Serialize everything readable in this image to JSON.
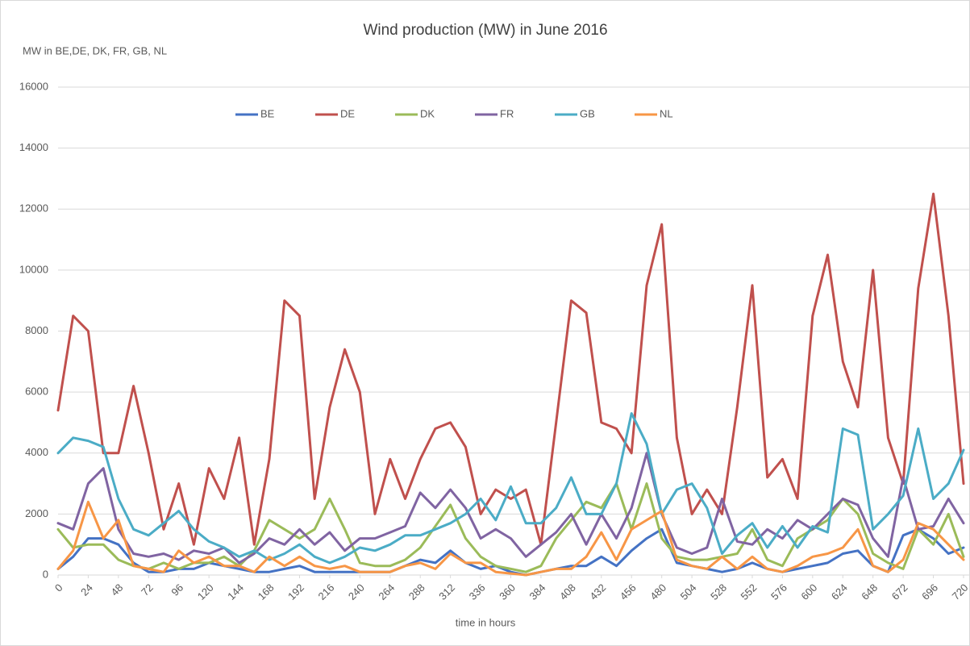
{
  "chart_data": {
    "type": "line",
    "title": "Wind production (MW) in June 2016",
    "y_label": "MW in BE,DE, DK, FR, GB, NL",
    "x_label": "time in hours",
    "x": [
      0,
      12,
      24,
      36,
      48,
      60,
      72,
      84,
      96,
      108,
      120,
      132,
      144,
      156,
      168,
      180,
      192,
      204,
      216,
      228,
      240,
      252,
      264,
      276,
      288,
      300,
      312,
      324,
      336,
      348,
      360,
      372,
      384,
      396,
      408,
      420,
      432,
      444,
      456,
      468,
      480,
      492,
      504,
      516,
      528,
      540,
      552,
      564,
      576,
      588,
      600,
      612,
      624,
      636,
      648,
      660,
      672,
      684,
      696,
      708,
      720
    ],
    "xlim": [
      0,
      720
    ],
    "xticks": [
      0,
      24,
      48,
      72,
      96,
      120,
      144,
      168,
      192,
      216,
      240,
      264,
      288,
      312,
      336,
      360,
      384,
      408,
      432,
      456,
      480,
      504,
      528,
      552,
      576,
      600,
      624,
      648,
      672,
      696,
      720
    ],
    "ylim": [
      0,
      16000
    ],
    "yticks": [
      0,
      2000,
      4000,
      6000,
      8000,
      10000,
      12000,
      14000,
      16000
    ],
    "grid": true,
    "legend": "top",
    "series": [
      {
        "name": "BE",
        "color": "#4472c4",
        "values": [
          200,
          600,
          1200,
          1200,
          1000,
          400,
          100,
          100,
          200,
          200,
          400,
          300,
          200,
          100,
          100,
          200,
          300,
          100,
          100,
          100,
          100,
          100,
          100,
          300,
          500,
          400,
          800,
          400,
          200,
          300,
          100,
          0,
          100,
          200,
          300,
          300,
          600,
          300,
          800,
          1200,
          1500,
          400,
          300,
          200,
          100,
          200,
          400,
          200,
          100,
          200,
          300,
          400,
          700,
          800,
          300,
          100,
          1300,
          1500,
          1200,
          700,
          900
        ]
      },
      {
        "name": "DE",
        "color": "#c0504d",
        "values": [
          5400,
          8500,
          8000,
          4000,
          4000,
          6200,
          4000,
          1500,
          3000,
          1000,
          3500,
          2500,
          4500,
          1000,
          3800,
          9000,
          8500,
          2500,
          5500,
          7400,
          6000,
          2000,
          3800,
          2500,
          3800,
          4800,
          5000,
          4200,
          2000,
          2800,
          2500,
          2800,
          1000,
          5000,
          9000,
          8600,
          5000,
          4800,
          4000,
          9500,
          11500,
          4500,
          2000,
          2800,
          2000,
          5500,
          9500,
          3200,
          3800,
          2500,
          8500,
          10500,
          7000,
          5500,
          10000,
          4500,
          3000,
          9400,
          12500,
          8500,
          3000
        ]
      },
      {
        "name": "DK",
        "color": "#9bbb59",
        "values": [
          1500,
          900,
          1000,
          1000,
          500,
          300,
          200,
          400,
          200,
          400,
          400,
          600,
          300,
          800,
          1800,
          1500,
          1200,
          1500,
          2500,
          1500,
          400,
          300,
          300,
          500,
          900,
          1600,
          2300,
          1200,
          600,
          300,
          200,
          100,
          300,
          1200,
          1800,
          2400,
          2200,
          3000,
          1500,
          3000,
          1200,
          600,
          500,
          500,
          600,
          700,
          1500,
          500,
          300,
          1200,
          1500,
          1800,
          2500,
          2000,
          700,
          400,
          200,
          1500,
          1000,
          2000,
          600
        ]
      },
      {
        "name": "FR",
        "color": "#8064a2",
        "values": [
          1700,
          1500,
          3000,
          3500,
          1500,
          700,
          600,
          700,
          500,
          800,
          700,
          900,
          400,
          700,
          1200,
          1000,
          1500,
          1000,
          1400,
          800,
          1200,
          1200,
          1400,
          1600,
          2700,
          2200,
          2800,
          2200,
          1200,
          1500,
          1200,
          600,
          1000,
          1400,
          2000,
          1000,
          2000,
          1200,
          2200,
          4000,
          2000,
          900,
          700,
          900,
          2500,
          1100,
          1000,
          1500,
          1200,
          1800,
          1500,
          2000,
          2500,
          2300,
          1200,
          600,
          3200,
          1500,
          1600,
          2500,
          1700
        ]
      },
      {
        "name": "GB",
        "color": "#4bacc6",
        "values": [
          4000,
          4500,
          4400,
          4200,
          2500,
          1500,
          1300,
          1700,
          2100,
          1500,
          1100,
          900,
          600,
          800,
          500,
          700,
          1000,
          600,
          400,
          600,
          900,
          800,
          1000,
          1300,
          1300,
          1500,
          1700,
          2000,
          2500,
          1800,
          2900,
          1700,
          1700,
          2200,
          3200,
          2000,
          2000,
          3000,
          5300,
          4300,
          2000,
          2800,
          3000,
          2200,
          700,
          1300,
          1700,
          900,
          1600,
          900,
          1600,
          1400,
          4800,
          4600,
          1500,
          2000,
          2600,
          4800,
          2500,
          3000,
          4100
        ]
      },
      {
        "name": "NL",
        "color": "#f79646",
        "values": [
          200,
          800,
          2400,
          1200,
          1800,
          300,
          200,
          100,
          800,
          400,
          600,
          300,
          300,
          100,
          600,
          300,
          600,
          300,
          200,
          300,
          100,
          100,
          100,
          300,
          400,
          200,
          700,
          400,
          400,
          100,
          50,
          0,
          100,
          200,
          200,
          600,
          1400,
          500,
          1500,
          1800,
          2100,
          500,
          300,
          200,
          600,
          200,
          600,
          200,
          100,
          300,
          600,
          700,
          900,
          1500,
          300,
          100,
          500,
          1700,
          1500,
          1000,
          500
        ]
      }
    ]
  }
}
